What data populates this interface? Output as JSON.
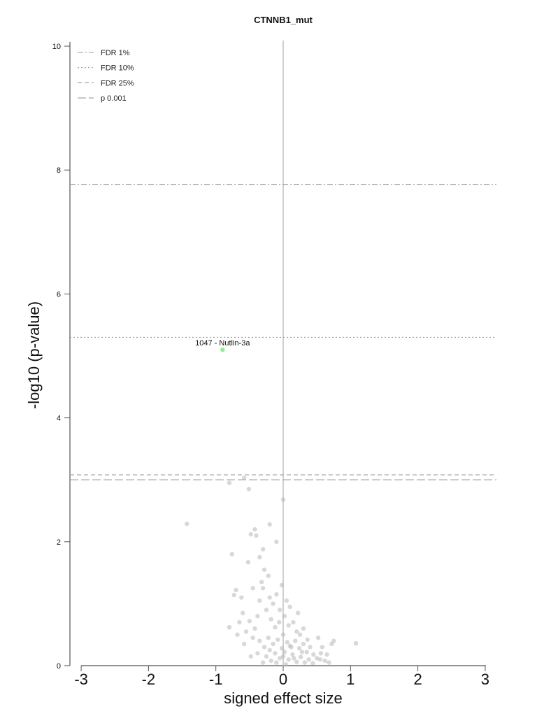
{
  "chart_data": {
    "type": "scatter",
    "title": "CTNNB1_mut",
    "xlabel": "signed effect size",
    "ylabel": "-log10 (p-value)",
    "xlim": [
      -3,
      3
    ],
    "ylim": [
      0,
      10
    ],
    "x_ticks": [
      "-3",
      "-2",
      "-1",
      "0",
      "1",
      "2",
      "3"
    ],
    "y_ticks": [
      "0",
      "2",
      "4",
      "6",
      "8",
      "10"
    ],
    "legend_position": "top-left",
    "grid": false,
    "thresholds": [
      {
        "name": "FDR 1%",
        "y": 7.77,
        "style": "dashdot"
      },
      {
        "name": "FDR 10%",
        "y": 5.3,
        "style": "dotted"
      },
      {
        "name": "FDR 25%",
        "y": 3.08,
        "style": "dashed"
      },
      {
        "name": "p 0.001",
        "y": 3.0,
        "style": "longdash"
      }
    ],
    "highlight": {
      "label": "1047 - Nutlin-3a",
      "x": -0.9,
      "y": 5.1,
      "color": "#90ee90"
    },
    "colors": {
      "points": "#b8b8b8",
      "highlight": "#90ee90",
      "lines": "#999999",
      "axis": "#555555"
    },
    "points": [
      [
        -1.43,
        2.29
      ],
      [
        -0.8,
        2.95
      ],
      [
        -0.58,
        3.03
      ],
      [
        -0.51,
        2.85
      ],
      [
        0.0,
        2.68
      ],
      [
        -0.76,
        1.8
      ],
      [
        -0.48,
        2.12
      ],
      [
        -0.42,
        2.2
      ],
      [
        -0.2,
        2.28
      ],
      [
        -0.4,
        2.1
      ],
      [
        -0.1,
        2.0
      ],
      [
        -0.3,
        1.88
      ],
      [
        -0.52,
        1.67
      ],
      [
        -0.35,
        1.75
      ],
      [
        -0.28,
        1.55
      ],
      [
        -0.7,
        1.22
      ],
      [
        -0.73,
        1.14
      ],
      [
        -0.62,
        1.1
      ],
      [
        -0.45,
        1.25
      ],
      [
        -0.35,
        1.05
      ],
      [
        -0.3,
        1.25
      ],
      [
        -0.2,
        1.1
      ],
      [
        -0.15,
        1.0
      ],
      [
        -0.1,
        1.15
      ],
      [
        -0.05,
        0.9
      ],
      [
        0.05,
        1.05
      ],
      [
        0.1,
        0.95
      ],
      [
        -0.02,
        1.3
      ],
      [
        -0.22,
        1.45
      ],
      [
        -0.32,
        1.35
      ],
      [
        -0.6,
        0.85
      ],
      [
        -0.65,
        0.7
      ],
      [
        -0.55,
        0.55
      ],
      [
        -0.5,
        0.72
      ],
      [
        -0.42,
        0.6
      ],
      [
        -0.38,
        0.8
      ],
      [
        -0.25,
        0.9
      ],
      [
        -0.18,
        0.75
      ],
      [
        -0.12,
        0.62
      ],
      [
        -0.06,
        0.7
      ],
      [
        0.02,
        0.8
      ],
      [
        0.08,
        0.65
      ],
      [
        0.15,
        0.7
      ],
      [
        0.2,
        0.55
      ],
      [
        0.25,
        0.5
      ],
      [
        -0.45,
        0.45
      ],
      [
        -0.35,
        0.4
      ],
      [
        -0.28,
        0.3
      ],
      [
        -0.22,
        0.45
      ],
      [
        -0.15,
        0.35
      ],
      [
        -0.08,
        0.42
      ],
      [
        0.0,
        0.5
      ],
      [
        0.06,
        0.38
      ],
      [
        0.12,
        0.3
      ],
      [
        0.18,
        0.4
      ],
      [
        0.24,
        0.28
      ],
      [
        0.3,
        0.35
      ],
      [
        0.35,
        0.22
      ],
      [
        0.4,
        0.3
      ],
      [
        0.45,
        0.18
      ],
      [
        -0.25,
        0.15
      ],
      [
        -0.18,
        0.08
      ],
      [
        -0.12,
        0.2
      ],
      [
        -0.05,
        0.12
      ],
      [
        0.02,
        0.22
      ],
      [
        0.08,
        0.1
      ],
      [
        0.14,
        0.18
      ],
      [
        0.2,
        0.06
      ],
      [
        0.26,
        0.14
      ],
      [
        0.32,
        0.05
      ],
      [
        0.38,
        0.1
      ],
      [
        0.44,
        0.04
      ],
      [
        0.5,
        0.12
      ],
      [
        0.56,
        0.2
      ],
      [
        0.62,
        0.08
      ],
      [
        0.52,
        0.45
      ],
      [
        0.58,
        0.3
      ],
      [
        0.65,
        0.18
      ],
      [
        0.72,
        0.35
      ],
      [
        0.75,
        0.4
      ],
      [
        1.08,
        0.36
      ],
      [
        0.55,
        0.1
      ],
      [
        0.68,
        0.05
      ],
      [
        0.3,
        0.6
      ],
      [
        0.22,
        0.85
      ],
      [
        -0.02,
        0.28
      ],
      [
        0.04,
        0.02
      ],
      [
        0.1,
        0.32
      ],
      [
        0.16,
        0.12
      ],
      [
        -0.3,
        0.05
      ],
      [
        -0.2,
        0.25
      ],
      [
        -0.1,
        0.05
      ],
      [
        0.0,
        0.15
      ],
      [
        0.28,
        0.22
      ],
      [
        0.36,
        0.42
      ],
      [
        -0.58,
        0.35
      ],
      [
        -0.48,
        0.15
      ],
      [
        -0.38,
        0.2
      ],
      [
        -0.68,
        0.5
      ],
      [
        -0.8,
        0.62
      ]
    ]
  }
}
